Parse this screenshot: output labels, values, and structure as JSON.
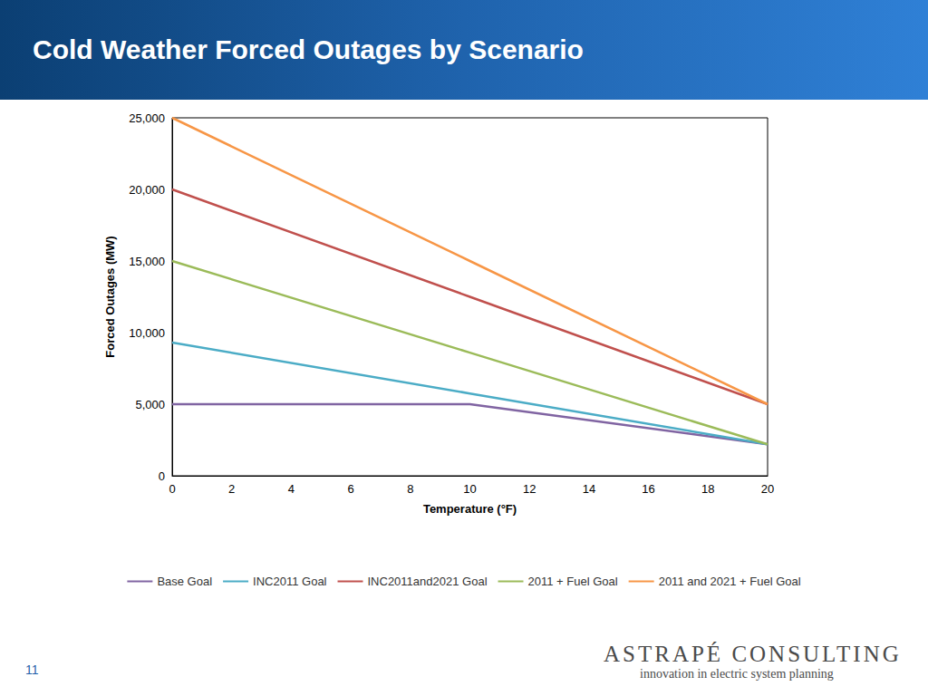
{
  "chart_data": {
    "type": "line",
    "title": "Cold Weather Forced Outages by Scenario",
    "x_label": "Temperature (°F)",
    "y_label": "Forced Outages (MW)",
    "x": [
      0,
      10,
      20
    ],
    "series": [
      {
        "name": "Base Goal",
        "color": "#8064a2",
        "values": [
          5000,
          5000,
          2200
        ]
      },
      {
        "name": "INC2011 Goal",
        "color": "#4bacc6",
        "values": [
          9300,
          5750,
          2200
        ]
      },
      {
        "name": "INC2011and2021 Goal",
        "color": "#c0504d",
        "values": [
          20000,
          12500,
          5000
        ]
      },
      {
        "name": "2011 + Fuel Goal",
        "color": "#9bbb59",
        "values": [
          15000,
          8600,
          2200
        ]
      },
      {
        "name": "2011 and 2021 + Fuel Goal",
        "color": "#f79646",
        "values": [
          25000,
          15000,
          5000
        ]
      }
    ],
    "xlim": [
      0,
      20
    ],
    "xticks": [
      0,
      2,
      4,
      6,
      8,
      10,
      12,
      14,
      16,
      18,
      20
    ],
    "ylim": [
      0,
      25000
    ],
    "yticks": [
      0,
      {
        "value": 5000,
        "label": "5,000"
      },
      {
        "value": 10000,
        "label": "10,000"
      },
      {
        "value": 15000,
        "label": "15,000"
      },
      {
        "value": 20000,
        "label": "20,000"
      },
      {
        "value": 25000,
        "label": "25,000"
      }
    ],
    "grid": false,
    "legend": "bottom"
  },
  "slide": {
    "page_number": 11,
    "logo": {
      "name": "ASTRAPÉ CONSULTING",
      "tagline": "innovation in electric system planning"
    }
  }
}
